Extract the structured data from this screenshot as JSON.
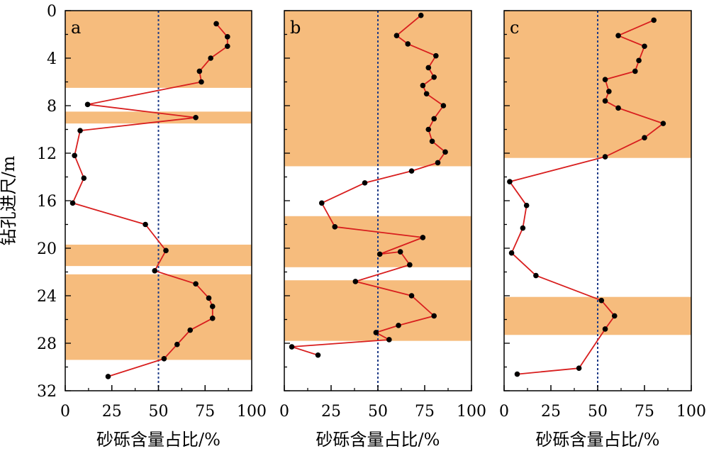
{
  "figure": {
    "ylabel": "钻孔进尺/m",
    "xlabel": "砂砾含量占比/%",
    "threshold": 50,
    "colors": {
      "shade": "#F6BC7D",
      "line": "#D81E1E",
      "point": "#000000",
      "threshold": "#1F3C88",
      "frame": "#000000"
    }
  },
  "chart_data": [
    {
      "type": "line",
      "panel": "a",
      "xlabel": "砂砾含量占比/%",
      "ylabel": "钻孔进尺/m",
      "xlim": [
        0,
        100
      ],
      "ylim": [
        32,
        0
      ],
      "y_inverted": true,
      "xticks": [
        "0",
        "25",
        "50",
        "75",
        "100"
      ],
      "yticks": [
        "0",
        "4",
        "8",
        "12",
        "16",
        "20",
        "24",
        "28",
        "32"
      ],
      "threshold_x": 50,
      "shaded_depth_intervals": [
        [
          0,
          6.5
        ],
        [
          8.5,
          9.5
        ],
        [
          19.7,
          21.5
        ],
        [
          22.2,
          29.4
        ]
      ],
      "points": [
        {
          "x": 81,
          "y": 1.1
        },
        {
          "x": 87,
          "y": 2.2
        },
        {
          "x": 87,
          "y": 3.0
        },
        {
          "x": 78,
          "y": 4.0
        },
        {
          "x": 72,
          "y": 5.1
        },
        {
          "x": 73,
          "y": 6.0
        },
        {
          "x": 12,
          "y": 7.9
        },
        {
          "x": 70,
          "y": 9.0
        },
        {
          "x": 8,
          "y": 10.1
        },
        {
          "x": 5,
          "y": 12.2
        },
        {
          "x": 10,
          "y": 14.1
        },
        {
          "x": 4,
          "y": 16.2
        },
        {
          "x": 43,
          "y": 18.0
        },
        {
          "x": 54,
          "y": 20.2
        },
        {
          "x": 48,
          "y": 21.9
        },
        {
          "x": 70,
          "y": 23.0
        },
        {
          "x": 77,
          "y": 24.2
        },
        {
          "x": 79,
          "y": 24.9
        },
        {
          "x": 79,
          "y": 25.9
        },
        {
          "x": 67,
          "y": 26.9
        },
        {
          "x": 60,
          "y": 28.1
        },
        {
          "x": 53,
          "y": 29.3
        },
        {
          "x": 23,
          "y": 30.8
        }
      ]
    },
    {
      "type": "line",
      "panel": "b",
      "xlabel": "砂砾含量占比/%",
      "xlim": [
        0,
        100
      ],
      "ylim": [
        32,
        0
      ],
      "y_inverted": true,
      "xticks": [
        "0",
        "25",
        "50",
        "75",
        "100"
      ],
      "threshold_x": 50,
      "shaded_depth_intervals": [
        [
          0,
          13.1
        ],
        [
          17.3,
          21.6
        ],
        [
          22.7,
          27.8
        ]
      ],
      "points": [
        {
          "x": 73,
          "y": 0.4
        },
        {
          "x": 60,
          "y": 2.1
        },
        {
          "x": 66,
          "y": 2.8
        },
        {
          "x": 81,
          "y": 3.8
        },
        {
          "x": 77,
          "y": 4.8
        },
        {
          "x": 80,
          "y": 5.6
        },
        {
          "x": 74,
          "y": 6.3
        },
        {
          "x": 76,
          "y": 7.0
        },
        {
          "x": 85,
          "y": 8.0
        },
        {
          "x": 80,
          "y": 9.1
        },
        {
          "x": 77,
          "y": 10.0
        },
        {
          "x": 79,
          "y": 11.0
        },
        {
          "x": 86,
          "y": 11.9
        },
        {
          "x": 82,
          "y": 12.8
        },
        {
          "x": 68,
          "y": 13.5
        },
        {
          "x": 43,
          "y": 14.5
        },
        {
          "x": 20,
          "y": 16.2
        },
        {
          "x": 27,
          "y": 18.2
        },
        {
          "x": 74,
          "y": 19.1
        },
        {
          "x": 51,
          "y": 20.5
        },
        {
          "x": 62,
          "y": 20.3
        },
        {
          "x": 67,
          "y": 21.4
        },
        {
          "x": 38,
          "y": 22.8
        },
        {
          "x": 68,
          "y": 24.0
        },
        {
          "x": 80,
          "y": 25.7
        },
        {
          "x": 61,
          "y": 26.5
        },
        {
          "x": 49,
          "y": 27.1
        },
        {
          "x": 56,
          "y": 27.7
        },
        {
          "x": 4,
          "y": 28.3
        },
        {
          "x": 18,
          "y": 29.0
        }
      ]
    },
    {
      "type": "line",
      "panel": "c",
      "xlabel": "砂砾含量占比/%",
      "xlim": [
        0,
        100
      ],
      "ylim": [
        32,
        0
      ],
      "y_inverted": true,
      "xticks": [
        "0",
        "25",
        "50",
        "75",
        "100"
      ],
      "threshold_x": 50,
      "shaded_depth_intervals": [
        [
          0,
          12.4
        ],
        [
          24.1,
          27.3
        ]
      ],
      "points": [
        {
          "x": 80,
          "y": 0.8
        },
        {
          "x": 61,
          "y": 2.1
        },
        {
          "x": 75,
          "y": 3.0
        },
        {
          "x": 72,
          "y": 4.2
        },
        {
          "x": 70,
          "y": 5.1
        },
        {
          "x": 54,
          "y": 5.8
        },
        {
          "x": 56,
          "y": 6.8
        },
        {
          "x": 54,
          "y": 7.6
        },
        {
          "x": 61,
          "y": 8.2
        },
        {
          "x": 85,
          "y": 9.5
        },
        {
          "x": 75,
          "y": 10.7
        },
        {
          "x": 54,
          "y": 12.3
        },
        {
          "x": 3,
          "y": 14.4
        },
        {
          "x": 12,
          "y": 16.4
        },
        {
          "x": 10,
          "y": 18.3
        },
        {
          "x": 4,
          "y": 20.4
        },
        {
          "x": 17,
          "y": 22.3
        },
        {
          "x": 52,
          "y": 24.4
        },
        {
          "x": 59,
          "y": 25.7
        },
        {
          "x": 54,
          "y": 26.8
        },
        {
          "x": 40,
          "y": 30.1
        },
        {
          "x": 7,
          "y": 30.6
        }
      ]
    }
  ]
}
